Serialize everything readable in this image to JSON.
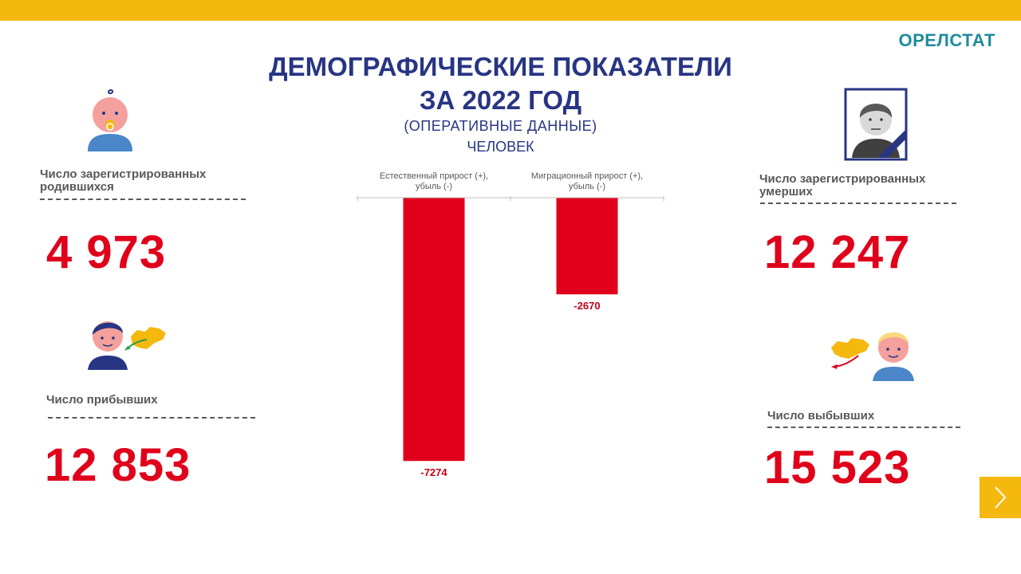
{
  "header": {
    "org": "ОРЕЛСТАТ",
    "title_line1": "ДЕМОГРАФИЧЕСКИЕ ПОКАЗАТЕЛИ",
    "title_line2": "ЗА 2022 ГОД",
    "subtitle_line1": "(ОПЕРАТИВНЫЕ  ДАННЫЕ)",
    "subtitle_line2": "ЧЕЛОВЕК"
  },
  "births": {
    "label_line1": "Число зарегистрированных",
    "label_line2": "родившихся",
    "value": "4 973",
    "icon": "baby-icon"
  },
  "arrivals": {
    "label": "Число прибывших",
    "value": "12 853",
    "icon": "arriving-person-icon"
  },
  "deaths": {
    "label_line1": "Число зарегистрированных",
    "label_line2": "умерших",
    "value": "12 247",
    "icon": "mourning-portrait-icon"
  },
  "departures": {
    "label": "Число выбывших",
    "value": "15 523",
    "icon": "departing-person-icon"
  },
  "colors": {
    "accent": "#f5b80f",
    "title": "#283583",
    "value": "#e0001b",
    "org": "#1d8c9c",
    "bar": "#e0001b"
  },
  "nav": {
    "next_icon": "chevron-right-icon"
  },
  "chart_data": {
    "type": "bar",
    "categories": [
      [
        "Естественный  прирост  (+),",
        "убыль (-)"
      ],
      [
        "Миграционный  прирост  (+),",
        "убыль (-)"
      ]
    ],
    "values": [
      -7274,
      -2670
    ],
    "data_labels": [
      "-7274",
      "-2670"
    ],
    "ylim": [
      -7600,
      0
    ],
    "grid": false,
    "legend": "none"
  }
}
